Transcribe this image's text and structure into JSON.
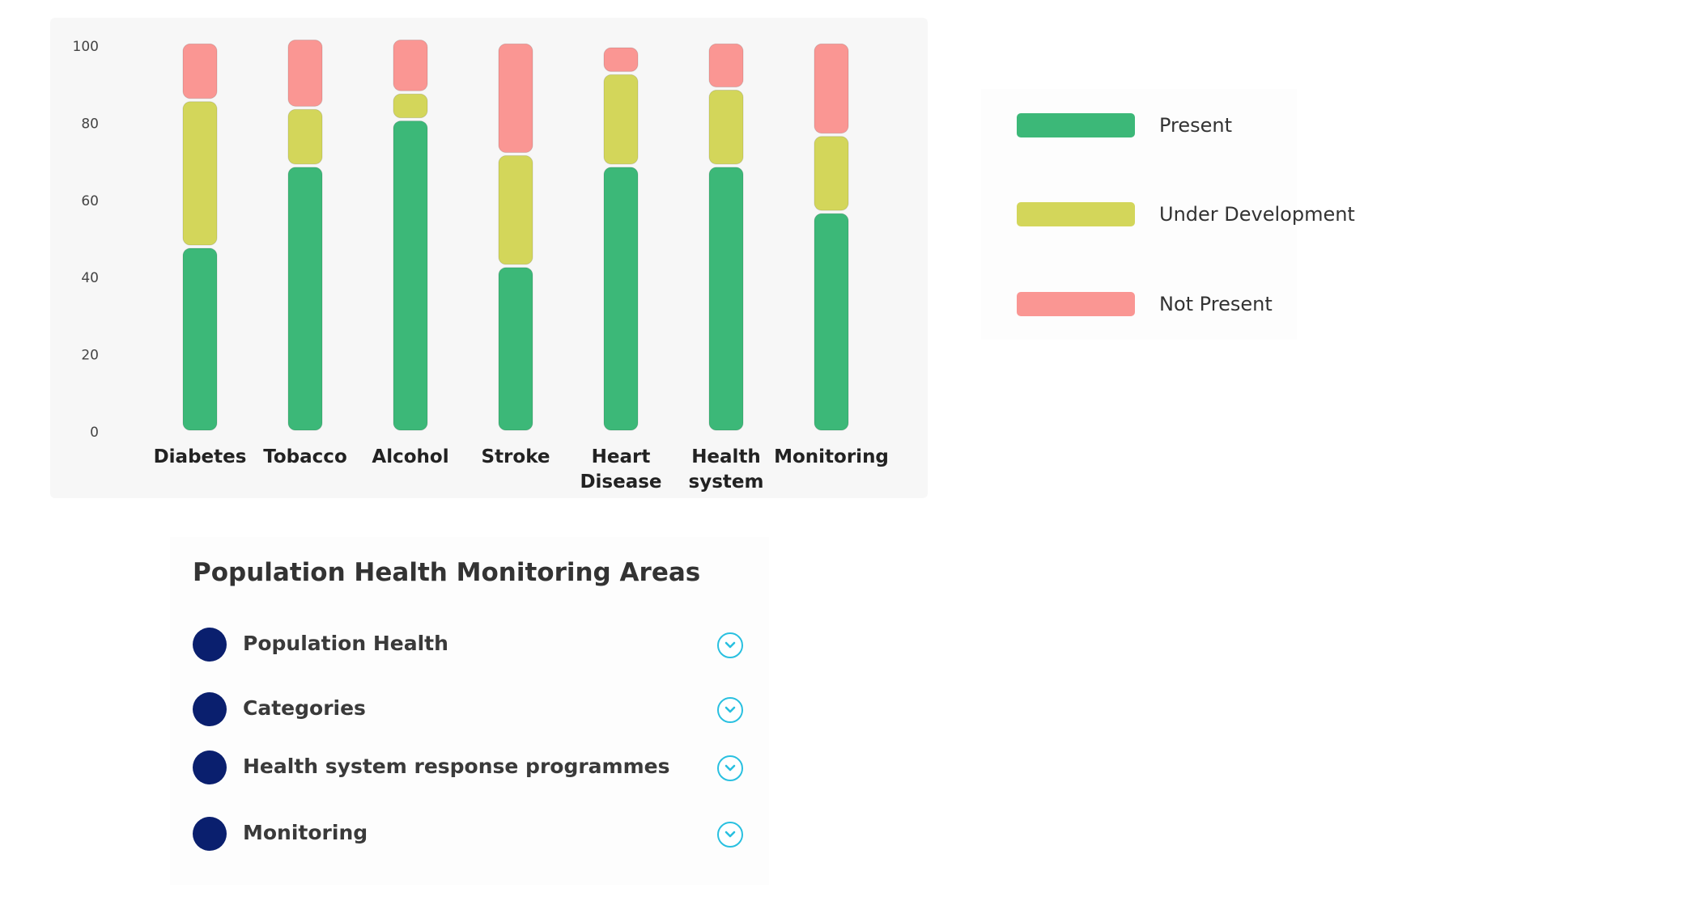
{
  "chart_data": {
    "type": "bar",
    "stacked": true,
    "categories": [
      "Diabetes",
      "Tobacco",
      "Alcohol",
      "Stroke",
      "Heart Disease",
      "Health system",
      "Monitoring"
    ],
    "category_labels": [
      [
        "Diabetes"
      ],
      [
        "Tobacco"
      ],
      [
        "Alcohol"
      ],
      [
        "Stroke"
      ],
      [
        "Heart",
        "Disease"
      ],
      [
        "Health",
        "system"
      ],
      [
        "Monitoring"
      ]
    ],
    "series": [
      {
        "name": "Present",
        "color": "#3cb878",
        "values": [
          48,
          69,
          81,
          43,
          69,
          69,
          57
        ]
      },
      {
        "name": "Under Development",
        "color": "#d3d65a",
        "values": [
          38,
          15,
          7,
          29,
          24,
          20,
          20
        ]
      },
      {
        "name": "Not Present",
        "color": "#fa9693",
        "values": [
          15,
          18,
          14,
          29,
          7,
          12,
          24
        ]
      }
    ],
    "ylim": [
      0,
      100
    ],
    "yticks": [
      0,
      20,
      40,
      60,
      80,
      100
    ],
    "title": "",
    "xlabel": "",
    "ylabel": "",
    "grid": false,
    "legend_position": "right"
  },
  "legend": {
    "items": [
      {
        "label": "Present",
        "color": "#3cb878"
      },
      {
        "label": "Under Development",
        "color": "#d3d65a"
      },
      {
        "label": "Not Present",
        "color": "#fa9693"
      }
    ]
  },
  "areas": {
    "title": "Population Health Monitoring Areas",
    "items": [
      {
        "label": "Population Health",
        "icon": "chevron-down-icon"
      },
      {
        "label": "Categories",
        "icon": "chevron-down-icon"
      },
      {
        "label": "Health system response programmes",
        "icon": "chevron-down-icon"
      },
      {
        "label": "Monitoring",
        "icon": "chevron-down-icon"
      }
    ],
    "dot_color": "#0a1f6e",
    "chevron_color": "#29c0e0"
  }
}
